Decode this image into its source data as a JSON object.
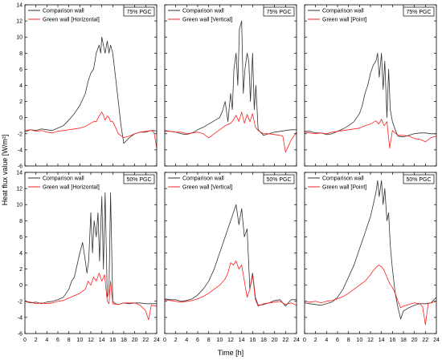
{
  "figure": {
    "ylabel": "Heat flux value [W/m²]",
    "xlabel": "Time [h]"
  },
  "colors": {
    "comparison": "#333333",
    "green": "#ff2020",
    "axis": "#000000"
  },
  "chart_data": [
    {
      "type": "line",
      "id": "p11",
      "badge": "75% PGC",
      "xlim": [
        0,
        24
      ],
      "ylim": [
        -6,
        14
      ],
      "xticks": [
        0,
        2,
        4,
        6,
        8,
        10,
        12,
        14,
        16,
        18,
        20,
        22,
        24
      ],
      "yticks": [
        -6,
        -4,
        -2,
        0,
        2,
        4,
        6,
        8,
        10,
        12,
        14
      ],
      "legend": "top-left",
      "series": [
        {
          "name": "Comparison wall",
          "color": "#333333",
          "x": [
            0,
            1,
            2,
            3,
            4,
            5,
            6,
            7,
            8,
            9,
            10,
            11,
            11.5,
            12,
            12.5,
            13,
            13.5,
            13.8,
            14,
            14.3,
            14.6,
            15,
            15.3,
            15.6,
            16,
            16.5,
            17,
            17.5,
            18,
            19,
            20,
            21,
            22,
            23,
            23.7,
            24
          ],
          "y": [
            -1.8,
            -1.5,
            -1.6,
            -1.4,
            -1.5,
            -1.6,
            -1.3,
            -1,
            -0.3,
            0.5,
            1.5,
            3,
            4.5,
            5.5,
            6,
            8,
            9,
            8,
            10,
            9,
            8,
            9.5,
            8,
            9,
            8,
            5,
            2,
            -1,
            -3.2,
            -2.5,
            -2,
            -1.8,
            -1.8,
            -1.6,
            -1.6,
            -1.7
          ]
        },
        {
          "name": "Green wall [Horizontal]",
          "color": "#ff2020",
          "x": [
            0,
            1,
            2,
            3,
            4,
            5,
            6,
            7,
            8,
            9,
            10,
            11,
            12,
            12.5,
            13,
            13.5,
            14,
            14.3,
            14.6,
            15,
            15.3,
            15.6,
            16,
            16.5,
            17,
            18,
            19,
            20,
            21,
            22,
            23,
            23.5,
            24
          ],
          "y": [
            -1.6,
            -1.5,
            -1.7,
            -1.6,
            -1.8,
            -1.9,
            -1.7,
            -1.6,
            -1.5,
            -1.4,
            -1.3,
            -1.1,
            -0.7,
            -0.5,
            -0.5,
            0.2,
            0.7,
            0.3,
            -0.3,
            0.2,
            0,
            -0.5,
            -0.5,
            -1.2,
            -2,
            -2.5,
            -2.3,
            -2,
            -1.8,
            -1.7,
            -1.6,
            -1.8,
            -3.8
          ]
        }
      ]
    },
    {
      "type": "line",
      "id": "p12",
      "badge": "75% PGC",
      "xlim": [
        0,
        24
      ],
      "ylim": [
        -6,
        14
      ],
      "xticks": [
        0,
        2,
        4,
        6,
        8,
        10,
        12,
        14,
        16,
        18,
        20,
        22,
        24
      ],
      "yticks": [
        -6,
        -4,
        -2,
        0,
        2,
        4,
        6,
        8,
        10,
        12,
        14
      ],
      "legend": "top-left",
      "series": [
        {
          "name": "Comparison wall",
          "color": "#333333",
          "x": [
            0,
            1,
            2,
            3,
            4,
            5,
            6,
            7,
            8,
            9,
            10,
            10.5,
            11,
            11.5,
            12,
            12.3,
            12.6,
            13,
            13.3,
            13.6,
            14,
            14.3,
            14.6,
            15,
            15.3,
            15.6,
            16,
            16.3,
            16.6,
            17,
            18,
            19,
            20,
            21,
            22,
            23,
            24
          ],
          "y": [
            -1.6,
            -1.7,
            -1.8,
            -2,
            -2.1,
            -1.9,
            -1.5,
            -1.2,
            -0.8,
            -0.4,
            0,
            0.8,
            2,
            -0.5,
            3,
            1,
            6,
            8,
            4,
            11,
            12,
            3,
            6,
            8,
            7,
            2,
            8,
            1,
            4,
            -1.5,
            -2.2,
            -2,
            -1.8,
            -1.7,
            -1.6,
            -1.5,
            -1.5
          ]
        },
        {
          "name": "Green wall [Vertical]",
          "color": "#ff2020",
          "x": [
            0,
            1,
            2,
            3,
            4,
            5,
            6,
            7,
            8,
            9,
            10,
            11,
            12,
            12.5,
            13,
            13.5,
            14,
            14.5,
            15,
            15.5,
            16,
            16.5,
            17,
            18,
            19,
            20,
            21,
            21.5,
            22,
            23,
            24
          ],
          "y": [
            -1.7,
            -1.7,
            -1.8,
            -1.8,
            -2,
            -1.9,
            -1.8,
            -2,
            -2.5,
            -2,
            -1.5,
            -1,
            -0.7,
            -0.3,
            0.3,
            -0.5,
            0.7,
            -0.7,
            0.4,
            -0.5,
            0.5,
            -1.2,
            -1.6,
            -2,
            -2,
            -2.1,
            -2.2,
            -2.3,
            -4.3,
            -2.8,
            -1.8
          ]
        }
      ]
    },
    {
      "type": "line",
      "id": "p13",
      "badge": "75% PGC",
      "xlim": [
        0,
        24
      ],
      "ylim": [
        -6,
        14
      ],
      "xticks": [
        0,
        2,
        4,
        6,
        8,
        10,
        12,
        14,
        16,
        18,
        20,
        22,
        24
      ],
      "yticks": [
        -6,
        -4,
        -2,
        0,
        2,
        4,
        6,
        8,
        10,
        12,
        14
      ],
      "legend": "top-left",
      "series": [
        {
          "name": "Comparison wall",
          "color": "#333333",
          "x": [
            0,
            1,
            2,
            3,
            4,
            5,
            6,
            7,
            8,
            9,
            10,
            10.5,
            11,
            11.5,
            12,
            12.5,
            13,
            13.3,
            13.6,
            14,
            14.3,
            14.6,
            15,
            15.3,
            15.6,
            16,
            16.5,
            17,
            18,
            19,
            20,
            21,
            22,
            23,
            24
          ],
          "y": [
            -1.7,
            -1.7,
            -1.9,
            -1.9,
            -2.1,
            -2,
            -1.7,
            -1.4,
            -1,
            -0.5,
            0.5,
            1.5,
            3,
            4,
            5.5,
            6.5,
            7,
            8,
            5,
            8,
            3.5,
            7,
            0,
            6,
            1,
            -0.5,
            -1.5,
            -2.3,
            -2.4,
            -2.2,
            -2,
            -1.9,
            -1.9,
            -2,
            -2
          ]
        },
        {
          "name": "Green wall [Point]",
          "color": "#ff2020",
          "x": [
            0,
            1,
            2,
            3,
            4,
            5,
            6,
            7,
            8,
            9,
            10,
            11,
            12,
            12.5,
            13,
            13.5,
            14,
            14.5,
            15,
            15.5,
            16,
            17,
            18,
            19,
            20,
            21,
            22,
            23,
            24
          ],
          "y": [
            -1.8,
            -1.9,
            -2,
            -1.9,
            -2,
            -1.8,
            -1.7,
            -1.6,
            -1.5,
            -1.4,
            -1.3,
            -1,
            -0.8,
            -0.6,
            -0.4,
            -0.8,
            -0.2,
            -1,
            -0.5,
            -3.8,
            -1.6,
            -2.2,
            -2.2,
            -2.3,
            -2.6,
            -2.7,
            -3,
            -2.5,
            -2.3
          ]
        }
      ]
    },
    {
      "type": "line",
      "id": "p21",
      "badge": "50% PGC",
      "xlim": [
        0,
        24
      ],
      "ylim": [
        -6,
        14
      ],
      "xticks": [
        0,
        2,
        4,
        6,
        8,
        10,
        12,
        14,
        16,
        18,
        20,
        22,
        24
      ],
      "yticks": [
        -6,
        -4,
        -2,
        0,
        2,
        4,
        6,
        8,
        10,
        12,
        14
      ],
      "legend": "top-left",
      "series": [
        {
          "name": "Comparison wall",
          "color": "#333333",
          "x": [
            0,
            1,
            2,
            3,
            4,
            5,
            6,
            7,
            7.5,
            8,
            8.5,
            9,
            9.5,
            10,
            10.5,
            11,
            11.3,
            11.6,
            12,
            12.3,
            12.6,
            13,
            13.3,
            13.6,
            14,
            14.3,
            14.6,
            15,
            15.3,
            15.6,
            16,
            16.5,
            17,
            18,
            19,
            20,
            21,
            22,
            23,
            24
          ],
          "y": [
            -2,
            -2.2,
            -2.1,
            -2.3,
            -2.1,
            -2,
            -1.8,
            -1.5,
            -1,
            -0.5,
            0.5,
            1,
            2.5,
            4,
            5.3,
            3,
            1.5,
            3,
            9,
            4,
            8,
            6,
            9,
            3,
            11,
            2,
            11.5,
            -1.5,
            -0.8,
            11.5,
            -2,
            -2.3,
            -2.4,
            -2.2,
            -2.3,
            -2.2,
            -2.2,
            -2.3,
            -2.3,
            -2.3
          ]
        },
        {
          "name": "Green wall [Horizontal]",
          "color": "#ff2020",
          "x": [
            0,
            1,
            2,
            3,
            4,
            5,
            6,
            7,
            8,
            9,
            10,
            11,
            11.5,
            12,
            12.5,
            13,
            13.5,
            14,
            14.5,
            15,
            15.3,
            15.6,
            16,
            17,
            18,
            19,
            20,
            21,
            22,
            22.5,
            23,
            24
          ],
          "y": [
            -2,
            -2.1,
            -2.3,
            -2.2,
            -2.3,
            -2.2,
            -2,
            -1.9,
            -1.6,
            -1.3,
            -1,
            -0.5,
            0.5,
            0,
            1,
            0.5,
            1.5,
            0.5,
            1.3,
            -2,
            -2.3,
            0.5,
            -2.3,
            -2.4,
            -2.2,
            -2.2,
            -2.2,
            -2.5,
            -3.2,
            -4.3,
            -2.5,
            -2.6
          ]
        }
      ]
    },
    {
      "type": "line",
      "id": "p22",
      "badge": "50% PGC",
      "xlim": [
        0,
        24
      ],
      "ylim": [
        -6,
        14
      ],
      "xticks": [
        0,
        2,
        4,
        6,
        8,
        10,
        12,
        14,
        16,
        18,
        20,
        22,
        24
      ],
      "yticks": [
        -6,
        -4,
        -2,
        0,
        2,
        4,
        6,
        8,
        10,
        12,
        14
      ],
      "legend": "top-left",
      "series": [
        {
          "name": "Comparison wall",
          "color": "#333333",
          "x": [
            0,
            1,
            2,
            3,
            4,
            5,
            6,
            7,
            8,
            9,
            10,
            11,
            11.5,
            12,
            12.5,
            13,
            13.5,
            14,
            14.5,
            15,
            15.5,
            16,
            16.5,
            17,
            18,
            19,
            20,
            21,
            22,
            23,
            24
          ],
          "y": [
            -1.7,
            -1.8,
            -1.8,
            -2,
            -1.9,
            -1.7,
            -1.2,
            -0.5,
            0.5,
            2,
            4,
            6,
            7,
            8,
            9,
            10,
            7.5,
            9.5,
            6,
            7,
            -0.5,
            1.5,
            -1.5,
            -2.5,
            -2.4,
            -2.2,
            -1.9,
            -1.8,
            -2.6,
            -1.8,
            -1.8
          ]
        },
        {
          "name": "Green wall [Vertical]",
          "color": "#ff2020",
          "x": [
            0,
            1,
            2,
            3,
            4,
            5,
            6,
            7,
            8,
            9,
            10,
            11,
            11.5,
            12,
            12.5,
            13,
            13.5,
            14,
            14.5,
            15,
            15.5,
            16,
            16.5,
            17,
            18,
            19,
            20,
            21,
            22,
            23,
            24
          ],
          "y": [
            -1.8,
            -1.9,
            -2,
            -2.1,
            -2,
            -1.9,
            -1.7,
            -1.4,
            -1,
            -0.5,
            0,
            0.8,
            1.5,
            2.8,
            2.5,
            3,
            2,
            2.5,
            0.5,
            -1.5,
            -0.5,
            1.2,
            -1.8,
            -2.6,
            -2.3,
            -2.2,
            -2.1,
            -2,
            -2.4,
            -2.2,
            -2.5
          ]
        }
      ]
    },
    {
      "type": "line",
      "id": "p23",
      "badge": "50% PGC",
      "xlim": [
        0,
        24
      ],
      "ylim": [
        -6,
        14
      ],
      "xticks": [
        0,
        2,
        4,
        6,
        8,
        10,
        12,
        14,
        16,
        18,
        20,
        22,
        24
      ],
      "yticks": [
        -6,
        -4,
        -2,
        0,
        2,
        4,
        6,
        8,
        10,
        12,
        14
      ],
      "legend": "top-left",
      "series": [
        {
          "name": "Comparison wall",
          "color": "#333333",
          "x": [
            0,
            1,
            2,
            3,
            4,
            5,
            6,
            7,
            8,
            9,
            10,
            11,
            11.5,
            12,
            12.5,
            13,
            13.3,
            13.6,
            14,
            14.3,
            14.6,
            15,
            15.3,
            15.6,
            16,
            16.5,
            17,
            17.5,
            18,
            19,
            20,
            21,
            22,
            23,
            24
          ],
          "y": [
            -2.2,
            -2.3,
            -2.4,
            -2.5,
            -2.3,
            -2.1,
            -1.5,
            -0.5,
            1,
            2.5,
            4.5,
            6.5,
            7.5,
            8.5,
            10,
            11.5,
            13,
            11,
            13,
            10,
            12,
            8,
            9,
            5,
            2,
            -1,
            -2.8,
            -4.2,
            -3.2,
            -2.8,
            -2.5,
            -2.3,
            -2.3,
            -2.2,
            -1.5
          ]
        },
        {
          "name": "Green wall [Point]",
          "color": "#ff2020",
          "x": [
            0,
            1,
            2,
            3,
            4,
            5,
            6,
            7,
            8,
            9,
            10,
            11,
            12,
            12.5,
            13,
            13.5,
            14,
            14.5,
            15,
            15.5,
            16,
            16.5,
            17,
            17.5,
            18,
            19,
            20,
            21,
            21.5,
            22,
            22.5,
            23,
            24
          ],
          "y": [
            -2,
            -2.1,
            -2,
            -2.2,
            -2,
            -1.9,
            -1.7,
            -1.4,
            -1,
            -0.5,
            0,
            0.5,
            1.3,
            1.8,
            2.2,
            2.5,
            2.3,
            1.8,
            1,
            0.2,
            -0.3,
            -1,
            -2,
            -2.8,
            -2.6,
            -2.4,
            -2.2,
            -2.3,
            -2.7,
            -4.9,
            -2.3,
            -2.2,
            -2
          ]
        }
      ]
    }
  ]
}
